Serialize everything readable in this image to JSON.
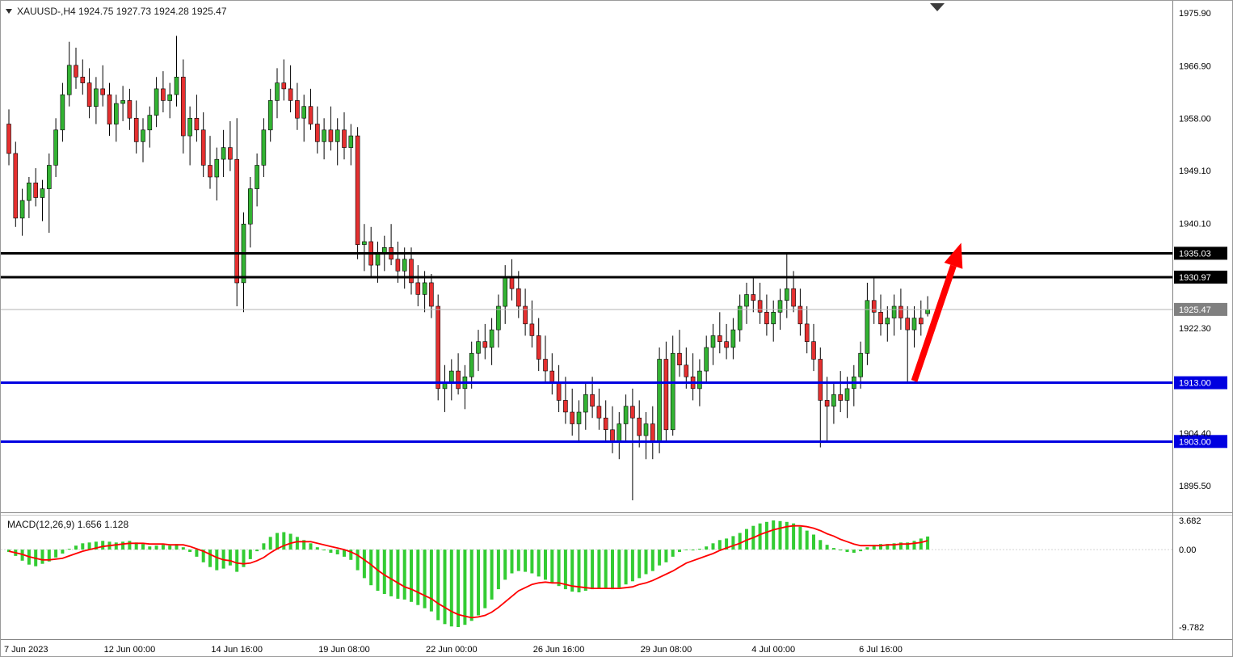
{
  "window": {
    "title_text": "XAUUSD-,H4 1924.75 1927.73 1924.28 1925.47"
  },
  "colors": {
    "up": "#33b333",
    "down": "#e53030",
    "candle_outline": "#000000",
    "macd_histogram": "#33cc33",
    "macd_signal": "#ff0000",
    "level_black": "#000000",
    "level_blue": "#0000e0",
    "current_price_box": "#808080",
    "arrow": "#ff0000",
    "axis_text": "#000000",
    "background": "#ffffff"
  },
  "chart_data": [
    {
      "type": "candlestick",
      "title": "XAUUSD- H4",
      "ylim": [
        1890.95,
        1977.97
      ],
      "y_ticks": [
        {
          "price": 1975.9,
          "label": "1975.90"
        },
        {
          "price": 1966.9,
          "label": "1966.90"
        },
        {
          "price": 1958.0,
          "label": "1958.00"
        },
        {
          "price": 1949.1,
          "label": "1949.10"
        },
        {
          "price": 1940.1,
          "label": "1940.10"
        },
        {
          "price": 1922.3,
          "label": "1922.30"
        },
        {
          "price": 1904.4,
          "label": "1904.40"
        },
        {
          "price": 1895.5,
          "label": "1895.50"
        }
      ],
      "x_labels": [
        {
          "index": 0,
          "label": "7 Jun 2023"
        },
        {
          "index": 18,
          "label": "12 Jun 00:00"
        },
        {
          "index": 34,
          "label": "14 Jun 16:00"
        },
        {
          "index": 50,
          "label": "19 Jun 08:00"
        },
        {
          "index": 66,
          "label": "22 Jun 00:00"
        },
        {
          "index": 82,
          "label": "26 Jun 16:00"
        },
        {
          "index": 98,
          "label": "29 Jun 08:00"
        },
        {
          "index": 114,
          "label": "4 Jul 00:00"
        },
        {
          "index": 130,
          "label": "6 Jul 16:00"
        }
      ],
      "levels": [
        {
          "price": 1935.03,
          "label": "1935.03",
          "line_color": "#000000",
          "box_color": "#000000",
          "line_width": 3,
          "role": "resistance"
        },
        {
          "price": 1930.97,
          "label": "1930.97",
          "line_color": "#000000",
          "box_color": "#000000",
          "line_width": 3,
          "role": "resistance"
        },
        {
          "price": 1925.47,
          "label": "1925.47",
          "line_color": "#b3b3b3",
          "box_color": "#808080",
          "line_width": 1,
          "role": "current-price"
        },
        {
          "price": 1913.0,
          "label": "1913.00",
          "line_color": "#0000e0",
          "box_color": "#0000e0",
          "line_width": 3,
          "role": "support"
        },
        {
          "price": 1903.0,
          "label": "1903.00",
          "line_color": "#0000e0",
          "box_color": "#0000e0",
          "line_width": 3,
          "role": "support"
        }
      ],
      "annotations": [
        {
          "type": "arrow",
          "from": {
            "index": 135,
            "price": 1913.3
          },
          "to": {
            "index": 142,
            "price": 1936.8
          },
          "color": "#ff0000"
        }
      ],
      "ohlc": [
        [
          1957,
          1959.5,
          1950,
          1952
        ],
        [
          1952,
          1954,
          1939.5,
          1941
        ],
        [
          1941,
          1946,
          1938,
          1944
        ],
        [
          1944,
          1948,
          1941,
          1947
        ],
        [
          1947,
          1949.5,
          1943,
          1944.5
        ],
        [
          1944.5,
          1947.5,
          1940.5,
          1946
        ],
        [
          1946,
          1952,
          1938.5,
          1950
        ],
        [
          1950,
          1958,
          1948,
          1956
        ],
        [
          1956,
          1964,
          1954,
          1962
        ],
        [
          1962,
          1971,
          1960,
          1967
        ],
        [
          1967,
          1970,
          1963,
          1965
        ],
        [
          1965,
          1968,
          1962,
          1964
        ],
        [
          1964,
          1966.5,
          1958,
          1960
        ],
        [
          1960,
          1965,
          1957,
          1963
        ],
        [
          1963,
          1967,
          1960,
          1962
        ],
        [
          1962,
          1964,
          1955,
          1957
        ],
        [
          1957,
          1962,
          1954,
          1960.5
        ],
        [
          1960.5,
          1963.5,
          1957.5,
          1961
        ],
        [
          1961,
          1963,
          1956,
          1958
        ],
        [
          1958,
          1961,
          1952,
          1954
        ],
        [
          1954,
          1958,
          1950.5,
          1956
        ],
        [
          1956,
          1960,
          1953,
          1958.5
        ],
        [
          1958.5,
          1965,
          1956.5,
          1963
        ],
        [
          1963,
          1966,
          1959,
          1961
        ],
        [
          1961,
          1964,
          1958,
          1962
        ],
        [
          1962,
          1972,
          1960,
          1965
        ],
        [
          1965,
          1968,
          1952,
          1955
        ],
        [
          1955,
          1960,
          1950,
          1958
        ],
        [
          1958,
          1962,
          1954,
          1956
        ],
        [
          1956,
          1959,
          1948,
          1950
        ],
        [
          1950,
          1955,
          1946,
          1948
        ],
        [
          1948,
          1953,
          1944,
          1951
        ],
        [
          1951,
          1956,
          1948,
          1953
        ],
        [
          1953,
          1957.5,
          1949,
          1951
        ],
        [
          1951,
          1958,
          1926,
          1930
        ],
        [
          1930,
          1942,
          1925,
          1940
        ],
        [
          1940,
          1948,
          1936,
          1946
        ],
        [
          1946,
          1952,
          1943,
          1950
        ],
        [
          1950,
          1958,
          1948,
          1956
        ],
        [
          1956,
          1963,
          1954,
          1961
        ],
        [
          1961,
          1966.5,
          1958,
          1964
        ],
        [
          1964,
          1968,
          1961,
          1963
        ],
        [
          1963,
          1967,
          1959,
          1961
        ],
        [
          1961,
          1964,
          1956,
          1958
        ],
        [
          1958,
          1962,
          1954,
          1960
        ],
        [
          1960,
          1963,
          1956,
          1957
        ],
        [
          1957,
          1960,
          1952,
          1954
        ],
        [
          1954,
          1958,
          1951,
          1956
        ],
        [
          1956,
          1960,
          1952.5,
          1954
        ],
        [
          1954,
          1958,
          1950,
          1956
        ],
        [
          1956,
          1959,
          1951,
          1953
        ],
        [
          1953,
          1957,
          1950,
          1955
        ],
        [
          1955,
          1956.5,
          1934,
          1936.5
        ],
        [
          1936.5,
          1940,
          1932,
          1937
        ],
        [
          1937,
          1939.5,
          1931,
          1933
        ],
        [
          1933,
          1937,
          1930,
          1935
        ],
        [
          1935,
          1938,
          1932,
          1936
        ],
        [
          1936,
          1940,
          1933,
          1934
        ],
        [
          1934,
          1937,
          1930,
          1932
        ],
        [
          1932,
          1936,
          1929,
          1934
        ],
        [
          1934,
          1936,
          1928,
          1930
        ],
        [
          1930,
          1933,
          1926,
          1928
        ],
        [
          1928,
          1932,
          1925,
          1930
        ],
        [
          1930,
          1931.5,
          1924,
          1926
        ],
        [
          1926,
          1928,
          1910,
          1912
        ],
        [
          1912,
          1916,
          1908,
          1913
        ],
        [
          1913,
          1917,
          1910,
          1915
        ],
        [
          1915,
          1918,
          1911,
          1912
        ],
        [
          1912,
          1916,
          1908.5,
          1914
        ],
        [
          1914,
          1920,
          1912,
          1918
        ],
        [
          1918,
          1922,
          1915,
          1920
        ],
        [
          1920,
          1923,
          1917,
          1919
        ],
        [
          1919,
          1924,
          1916,
          1922
        ],
        [
          1922,
          1928,
          1919,
          1926
        ],
        [
          1926,
          1933,
          1923,
          1931
        ],
        [
          1931,
          1934,
          1927,
          1929
        ],
        [
          1929,
          1932,
          1924,
          1926
        ],
        [
          1926,
          1929,
          1921,
          1923
        ],
        [
          1923,
          1927,
          1919,
          1921
        ],
        [
          1921,
          1924,
          1915,
          1917
        ],
        [
          1917,
          1921,
          1913,
          1915
        ],
        [
          1915,
          1918,
          1911,
          1913
        ],
        [
          1913,
          1916,
          1908,
          1910
        ],
        [
          1910,
          1914,
          1906,
          1908
        ],
        [
          1908,
          1912,
          1904,
          1906
        ],
        [
          1906,
          1910,
          1903,
          1908
        ],
        [
          1908,
          1913,
          1905,
          1911
        ],
        [
          1911,
          1914,
          1907,
          1909
        ],
        [
          1909,
          1912,
          1905,
          1907
        ],
        [
          1907,
          1910,
          1903,
          1905
        ],
        [
          1905,
          1909,
          1901,
          1903
        ],
        [
          1903,
          1908,
          1900,
          1906
        ],
        [
          1906,
          1911,
          1903,
          1909
        ],
        [
          1909,
          1912,
          1893,
          1907
        ],
        [
          1907,
          1910,
          1902,
          1904
        ],
        [
          1904,
          1908,
          1900,
          1906
        ],
        [
          1906,
          1909,
          1900,
          1903
        ],
        [
          1903,
          1919,
          1901,
          1917
        ],
        [
          1917,
          1920,
          1903,
          1905
        ],
        [
          1905,
          1921,
          1904,
          1918
        ],
        [
          1918,
          1922,
          1914,
          1916
        ],
        [
          1916,
          1919,
          1912,
          1914
        ],
        [
          1914,
          1918,
          1910,
          1912
        ],
        [
          1912,
          1917,
          1909,
          1915
        ],
        [
          1915,
          1921,
          1913,
          1919
        ],
        [
          1919,
          1923,
          1916,
          1921
        ],
        [
          1921,
          1925,
          1918,
          1920
        ],
        [
          1920,
          1923,
          1917,
          1919
        ],
        [
          1919,
          1924,
          1917,
          1922
        ],
        [
          1922,
          1928,
          1920,
          1926
        ],
        [
          1926,
          1930,
          1923,
          1928
        ],
        [
          1928,
          1931,
          1925,
          1927
        ],
        [
          1927,
          1930,
          1923,
          1925
        ],
        [
          1925,
          1928,
          1921,
          1923
        ],
        [
          1923,
          1927,
          1920,
          1925
        ],
        [
          1925,
          1929,
          1922,
          1927
        ],
        [
          1927,
          1935,
          1924,
          1929
        ],
        [
          1929,
          1932,
          1925,
          1926
        ],
        [
          1926,
          1929,
          1921,
          1923
        ],
        [
          1923,
          1926,
          1918,
          1920
        ],
        [
          1920,
          1923,
          1915,
          1917
        ],
        [
          1917,
          1919,
          1902,
          1910
        ],
        [
          1910,
          1914,
          1903,
          1909
        ],
        [
          1909,
          1913,
          1906,
          1911
        ],
        [
          1911,
          1915,
          1908,
          1910
        ],
        [
          1910,
          1914,
          1907,
          1912
        ],
        [
          1912,
          1916,
          1909,
          1914
        ],
        [
          1914,
          1920,
          1912,
          1918
        ],
        [
          1918,
          1930,
          1916,
          1927
        ],
        [
          1927,
          1931,
          1923,
          1925
        ],
        [
          1925,
          1928,
          1921,
          1923
        ],
        [
          1923,
          1926,
          1920,
          1924
        ],
        [
          1924,
          1928,
          1921,
          1926
        ],
        [
          1926,
          1929,
          1922,
          1924
        ],
        [
          1924,
          1926,
          1913,
          1922
        ],
        [
          1922,
          1926,
          1919,
          1924
        ],
        [
          1924,
          1927,
          1921,
          1923
        ],
        [
          1924.75,
          1927.73,
          1924.28,
          1925.47
        ]
      ]
    },
    {
      "type": "macd",
      "label": "MACD(12,26,9)",
      "values_text": "1.656 1.128",
      "value_macd": 1.656,
      "value_signal": 1.128,
      "ylim": [
        -9.782,
        3.682
      ],
      "y_ticks": [
        {
          "value": 3.682,
          "label": "3.682"
        },
        {
          "value": 0,
          "label": "0.00"
        },
        {
          "value": -9.782,
          "label": "-9.782"
        }
      ],
      "histogram": [
        -0.3,
        -0.8,
        -1.4,
        -1.9,
        -2.1,
        -1.8,
        -1.5,
        -1.0,
        -0.5,
        0.1,
        0.5,
        0.8,
        0.9,
        1.0,
        1.1,
        1.0,
        0.9,
        1.0,
        1.1,
        0.9,
        0.7,
        0.4,
        0.5,
        0.6,
        0.5,
        0.7,
        0.3,
        -0.3,
        -0.9,
        -1.6,
        -2.2,
        -2.6,
        -2.4,
        -2.0,
        -2.8,
        -2.2,
        -1.2,
        -0.2,
        0.8,
        1.6,
        2.1,
        2.2,
        2.0,
        1.6,
        1.2,
        0.8,
        0.3,
        -0.1,
        -0.4,
        -0.6,
        -0.9,
        -1.3,
        -2.6,
        -3.6,
        -4.5,
        -5.2,
        -5.6,
        -5.9,
        -6.2,
        -6.3,
        -6.6,
        -7.0,
        -7.4,
        -7.8,
        -8.9,
        -9.4,
        -9.7,
        -9.782,
        -9.5,
        -9.0,
        -8.3,
        -7.4,
        -6.3,
        -5.0,
        -3.8,
        -3.0,
        -2.7,
        -2.8,
        -3.0,
        -3.4,
        -3.8,
        -4.2,
        -4.6,
        -5.0,
        -5.3,
        -5.4,
        -5.2,
        -5.0,
        -4.9,
        -4.9,
        -5.0,
        -4.8,
        -4.4,
        -4.0,
        -3.6,
        -3.1,
        -2.7,
        -2.0,
        -1.6,
        -0.9,
        -0.3,
        0.0,
        -0.1,
        0.1,
        0.4,
        0.8,
        1.2,
        1.4,
        1.7,
        2.1,
        2.6,
        3.0,
        3.3,
        3.5,
        3.682,
        3.6,
        3.5,
        3.3,
        2.9,
        2.4,
        1.9,
        1.2,
        0.6,
        0.2,
        -0.1,
        -0.3,
        -0.4,
        -0.2,
        0.3,
        0.6,
        0.7,
        0.7,
        0.8,
        0.9,
        0.9,
        1.1,
        1.4,
        1.656
      ],
      "signal": [
        -0.2,
        -0.4,
        -0.6,
        -0.9,
        -1.1,
        -1.3,
        -1.3,
        -1.2,
        -1.1,
        -0.8,
        -0.5,
        -0.2,
        0.0,
        0.2,
        0.4,
        0.5,
        0.6,
        0.7,
        0.8,
        0.8,
        0.8,
        0.7,
        0.7,
        0.7,
        0.6,
        0.6,
        0.6,
        0.4,
        0.1,
        -0.2,
        -0.6,
        -1.0,
        -1.3,
        -1.4,
        -1.7,
        -1.8,
        -1.7,
        -1.4,
        -1.0,
        -0.4,
        0.1,
        0.5,
        0.8,
        1.0,
        1.0,
        1.0,
        0.8,
        0.6,
        0.4,
        0.2,
        0.0,
        -0.3,
        -0.7,
        -1.3,
        -1.9,
        -2.6,
        -3.2,
        -3.7,
        -4.2,
        -4.7,
        -5.0,
        -5.4,
        -5.8,
        -6.2,
        -6.8,
        -7.3,
        -7.8,
        -8.2,
        -8.4,
        -8.6,
        -8.5,
        -8.3,
        -7.9,
        -7.3,
        -6.6,
        -5.9,
        -5.2,
        -4.8,
        -4.4,
        -4.2,
        -4.1,
        -4.2,
        -4.2,
        -4.4,
        -4.6,
        -4.7,
        -4.8,
        -4.9,
        -4.9,
        -4.9,
        -4.9,
        -4.9,
        -4.8,
        -4.7,
        -4.4,
        -4.2,
        -3.9,
        -3.5,
        -3.1,
        -2.7,
        -2.2,
        -1.7,
        -1.4,
        -1.1,
        -0.8,
        -0.5,
        -0.1,
        0.2,
        0.5,
        0.8,
        1.2,
        1.5,
        1.9,
        2.2,
        2.5,
        2.7,
        2.9,
        3.0,
        3.0,
        2.9,
        2.7,
        2.4,
        2.0,
        1.7,
        1.3,
        1.0,
        0.7,
        0.5,
        0.5,
        0.5,
        0.5,
        0.6,
        0.6,
        0.7,
        0.7,
        0.8,
        0.9,
        1.128
      ]
    }
  ]
}
